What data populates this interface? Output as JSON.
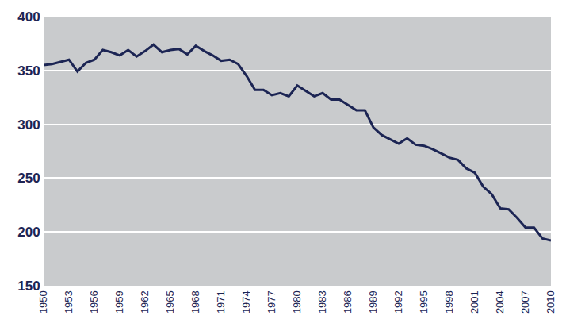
{
  "chart_data": {
    "type": "line",
    "x": [
      1950,
      1951,
      1952,
      1953,
      1954,
      1955,
      1956,
      1957,
      1958,
      1959,
      1960,
      1961,
      1962,
      1963,
      1964,
      1965,
      1966,
      1967,
      1968,
      1969,
      1970,
      1971,
      1972,
      1973,
      1974,
      1975,
      1976,
      1977,
      1978,
      1979,
      1980,
      1981,
      1982,
      1983,
      1984,
      1985,
      1986,
      1987,
      1988,
      1989,
      1990,
      1991,
      1992,
      1993,
      1994,
      1995,
      1996,
      1997,
      1998,
      1999,
      2000,
      2001,
      2002,
      2003,
      2004,
      2005,
      2006,
      2007,
      2008,
      2009,
      2010
    ],
    "values": [
      355,
      356,
      358,
      360,
      349,
      357,
      360,
      369,
      367,
      364,
      369,
      363,
      368,
      374,
      367,
      369,
      370,
      365,
      373,
      368,
      364,
      359,
      360,
      356,
      345,
      332,
      332,
      327,
      329,
      326,
      336,
      331,
      326,
      329,
      323,
      323,
      318,
      313,
      313,
      297,
      290,
      286,
      282,
      287,
      281,
      280,
      277,
      273,
      269,
      267,
      259,
      255,
      242,
      235,
      222,
      221,
      213,
      204,
      204,
      194,
      192
    ],
    "color": "#1c2554",
    "xlim": [
      1950,
      2010
    ],
    "xticks": [
      1950,
      1953,
      1956,
      1959,
      1962,
      1965,
      1968,
      1971,
      1974,
      1977,
      1980,
      1983,
      1986,
      1989,
      1992,
      1995,
      1998,
      2001,
      2004,
      2007,
      2010
    ],
    "ylim": [
      150,
      400
    ],
    "yticks": [
      150,
      200,
      250,
      300,
      350,
      400
    ],
    "grid": true
  }
}
